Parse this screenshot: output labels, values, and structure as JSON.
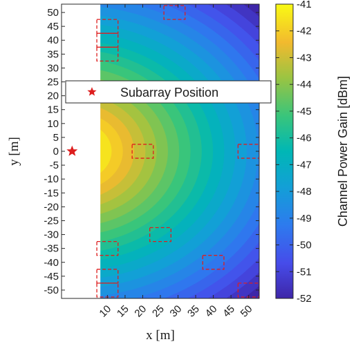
{
  "chart_data": {
    "type": "heatmap",
    "title": "",
    "xlabel": "x [m]",
    "ylabel": "y [m]",
    "xlim": [
      -3,
      53
    ],
    "ylim": [
      -53,
      53
    ],
    "x_ticks": [
      10,
      15,
      20,
      25,
      30,
      35,
      40,
      45,
      50
    ],
    "y_ticks": [
      50,
      45,
      40,
      35,
      30,
      25,
      20,
      15,
      10,
      5,
      0,
      -5,
      -10,
      -15,
      -20,
      -25,
      -30,
      -35,
      -40,
      -45,
      -50
    ],
    "heatmap_region": {
      "x": [
        8,
        53
      ],
      "y": [
        -53,
        53
      ]
    },
    "colorbar": {
      "label": "Channel Power Gain [dBm]",
      "min": -52,
      "max": -41,
      "ticks": [
        -41,
        -42,
        -43,
        -44,
        -45,
        -46,
        -47,
        -48,
        -49,
        -50,
        -51,
        -52
      ],
      "colormap": "parula"
    },
    "legend": {
      "label": "Subarray Position",
      "placement": "upper-left"
    },
    "subarray_position": {
      "x": 0,
      "y": 0,
      "color": "#dd1e1e"
    },
    "dashed_boxes": [
      {
        "x": 10,
        "y": 45
      },
      {
        "x": 10,
        "y": 40
      },
      {
        "x": 10,
        "y": 35
      },
      {
        "x": 29,
        "y": 50
      },
      {
        "x": 20,
        "y": 0
      },
      {
        "x": 50,
        "y": 0
      },
      {
        "x": 25,
        "y": -30
      },
      {
        "x": 10,
        "y": -35
      },
      {
        "x": 10,
        "y": -45
      },
      {
        "x": 10,
        "y": -50
      },
      {
        "x": 40,
        "y": -40
      },
      {
        "x": 50,
        "y": -50
      }
    ],
    "box_size": {
      "w": 6,
      "h": 5
    }
  }
}
